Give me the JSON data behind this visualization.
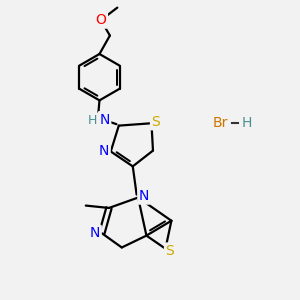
{
  "bg_color": "#f2f2f2",
  "bond_color": "#000000",
  "bond_width": 1.6,
  "atom_colors": {
    "S": "#ccaa00",
    "N": "#0000ff",
    "O": "#ff0000",
    "H": "#4a9090",
    "C": "#000000",
    "Br": "#cc7700"
  },
  "font_size": 9
}
